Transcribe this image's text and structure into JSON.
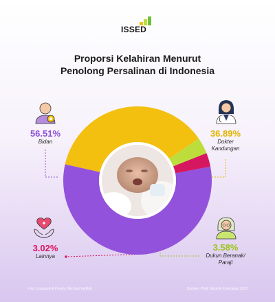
{
  "logo": {
    "text": "ISSED"
  },
  "title": {
    "line1": "Proporsi Kelahiran Menurut",
    "line2": "Penolong Persalinan di Indonesia"
  },
  "chart_data": {
    "type": "pie",
    "title": "Proporsi Kelahiran Menurut Penolong Persalinan di Indonesia",
    "categories": [
      "Dokter Kandungan",
      "Dukun Beranak/ Paraji",
      "Lainnya",
      "Bidan"
    ],
    "values": [
      36.89,
      3.58,
      3.02,
      56.51
    ],
    "value_labels": [
      "36.89%",
      "3.58%",
      "3.02%",
      "56.51%"
    ],
    "colors": [
      "#f3c00f",
      "#bcdd3c",
      "#d6165e",
      "#9352db"
    ],
    "legend": "none"
  },
  "labels": {
    "bidan": {
      "pct": "56.51%",
      "cat": "Bidan",
      "color": "#8e4fd6"
    },
    "dokter": {
      "pct": "36.89%",
      "cat1": "Dokter",
      "cat2": "Kandungan",
      "color": "#e2b400"
    },
    "lainnya": {
      "pct": "3.02%",
      "cat": "Lainnya",
      "color": "#d6165e"
    },
    "dukun": {
      "pct": "3.58%",
      "cat1": "Dukun Beranak/",
      "cat2": "Paraji",
      "color": "#9cc41c"
    }
  },
  "icons": {
    "bidan": "midwife-icon",
    "dokter": "doctor-icon",
    "lainnya": "heart-hands-icon",
    "dukun": "elderly-woman-icon",
    "center": "newborn-baby-photo"
  },
  "footer": {
    "left": "Foto: Unsplash & Pexels | Nuzhan Fadilah",
    "right": "Sumber: Profil Statistik Kesehatan 2023"
  }
}
